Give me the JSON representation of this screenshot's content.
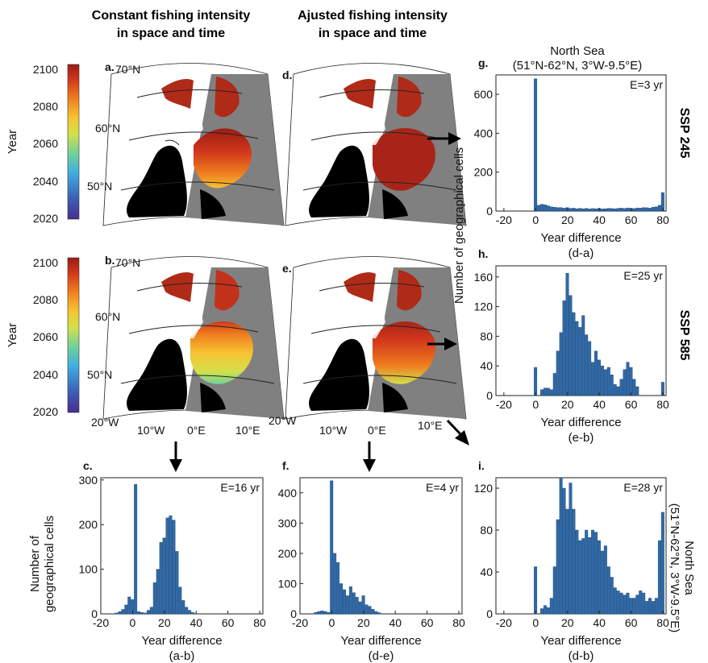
{
  "headers": {
    "col1_line1": "Constant fishing intensity",
    "col1_line2": "in space and time",
    "col2_line1": "Ajusted fishing intensity",
    "col2_line2": "in space and time"
  },
  "colors": {
    "bar": "#2f6aa8",
    "land": "#000000",
    "ocean": "#808080",
    "arctic_ocean": "#ffffff",
    "colormap": [
      "#4b2c8f",
      "#3c62b8",
      "#3faee0",
      "#6fd19a",
      "#d3e04a",
      "#f7c231",
      "#ef7d1f",
      "#d1381c",
      "#9b1c14"
    ]
  },
  "colorbars": [
    {
      "ylabel": "Year",
      "ticks": [
        "2100",
        "2080",
        "2060",
        "2040",
        "2020"
      ]
    },
    {
      "ylabel": "Year",
      "ticks": [
        "2100",
        "2080",
        "2060",
        "2040",
        "2020"
      ]
    }
  ],
  "maps": {
    "lat_labels": [
      "70°N",
      "60°N",
      "50°N"
    ],
    "lon_labels": [
      "20°W",
      "10°W",
      "0°E",
      "10°E"
    ],
    "panels": [
      {
        "letter": "a.",
        "fill": "dark-red-to-orange"
      },
      {
        "letter": "d.",
        "fill": "dark-red"
      },
      {
        "letter": "b.",
        "fill": "orange-yellow"
      },
      {
        "letter": "e.",
        "fill": "red-orange"
      }
    ]
  },
  "side_labels": {
    "ssp245": "SSP 245",
    "ssp585": "SSP 585",
    "g_title1": "North Sea",
    "g_title2": "(51°N-62°N, 3°W-9.5°E)",
    "i_right1": "North Sea",
    "i_right2": "(51°N-62°N, 3°W-9.5°E)",
    "shared_ylabel": "Number of geographical cells",
    "c_ylabel1": "Number of",
    "c_ylabel2": "geographical cells"
  },
  "chart_data": [
    {
      "id": "g",
      "letter": "g.",
      "type": "bar",
      "annotation": "E=3 yr",
      "xlabel": "Year difference",
      "sublabel": "(d-a)",
      "xlim": [
        -25,
        82
      ],
      "ylim": [
        0,
        700
      ],
      "xticks": [
        -20,
        0,
        20,
        40,
        60,
        80
      ],
      "yticks": [
        0,
        200,
        400,
        600
      ],
      "bins": [
        [
          0,
          680
        ],
        [
          2,
          30
        ],
        [
          4,
          35
        ],
        [
          6,
          32
        ],
        [
          8,
          27
        ],
        [
          10,
          22
        ],
        [
          12,
          20
        ],
        [
          14,
          18
        ],
        [
          16,
          18
        ],
        [
          18,
          15
        ],
        [
          20,
          18
        ],
        [
          22,
          14
        ],
        [
          24,
          15
        ],
        [
          26,
          12
        ],
        [
          28,
          14
        ],
        [
          30,
          12
        ],
        [
          32,
          14
        ],
        [
          34,
          11
        ],
        [
          36,
          13
        ],
        [
          38,
          12
        ],
        [
          40,
          14
        ],
        [
          42,
          11
        ],
        [
          44,
          12
        ],
        [
          46,
          14
        ],
        [
          48,
          13
        ],
        [
          50,
          12
        ],
        [
          52,
          14
        ],
        [
          54,
          15
        ],
        [
          56,
          13
        ],
        [
          58,
          16
        ],
        [
          60,
          14
        ],
        [
          62,
          13
        ],
        [
          64,
          16
        ],
        [
          66,
          15
        ],
        [
          68,
          18
        ],
        [
          70,
          17
        ],
        [
          72,
          15
        ],
        [
          74,
          20
        ],
        [
          76,
          22
        ],
        [
          78,
          30
        ],
        [
          80,
          95
        ]
      ]
    },
    {
      "id": "h",
      "letter": "h.",
      "type": "bar",
      "annotation": "E=25 yr",
      "xlabel": "Year difference",
      "sublabel": "(e-b)",
      "xlim": [
        -25,
        82
      ],
      "ylim": [
        0,
        175
      ],
      "xticks": [
        -20,
        0,
        20,
        40,
        60,
        80
      ],
      "yticks": [
        0,
        40,
        80,
        120,
        160
      ],
      "bins": [
        [
          0,
          38
        ],
        [
          4,
          8
        ],
        [
          6,
          10
        ],
        [
          8,
          10
        ],
        [
          10,
          8
        ],
        [
          12,
          30
        ],
        [
          14,
          60
        ],
        [
          16,
          85
        ],
        [
          18,
          128
        ],
        [
          20,
          165
        ],
        [
          22,
          135
        ],
        [
          24,
          112
        ],
        [
          26,
          100
        ],
        [
          28,
          92
        ],
        [
          30,
          108
        ],
        [
          32,
          82
        ],
        [
          34,
          73
        ],
        [
          36,
          45
        ],
        [
          38,
          60
        ],
        [
          40,
          48
        ],
        [
          42,
          40
        ],
        [
          44,
          35
        ],
        [
          46,
          38
        ],
        [
          48,
          28
        ],
        [
          50,
          15
        ],
        [
          52,
          12
        ],
        [
          54,
          22
        ],
        [
          56,
          35
        ],
        [
          58,
          45
        ],
        [
          60,
          38
        ],
        [
          62,
          22
        ],
        [
          64,
          12
        ],
        [
          80,
          18
        ]
      ]
    },
    {
      "id": "c",
      "letter": "c.",
      "type": "bar",
      "annotation": "E=16 yr",
      "xlabel": "Year difference",
      "sublabel": "(a-b)",
      "xlim": [
        -20,
        82
      ],
      "ylim": [
        0,
        305
      ],
      "xticks": [
        -20,
        0,
        20,
        40,
        60,
        80
      ],
      "yticks": [
        0,
        100,
        200,
        300
      ],
      "bins": [
        [
          -10,
          2
        ],
        [
          -8,
          5
        ],
        [
          -6,
          10
        ],
        [
          -4,
          20
        ],
        [
          -2,
          38
        ],
        [
          0,
          32
        ],
        [
          2,
          290
        ],
        [
          4,
          5
        ],
        [
          6,
          3
        ],
        [
          8,
          2
        ],
        [
          10,
          8
        ],
        [
          12,
          15
        ],
        [
          14,
          70
        ],
        [
          16,
          100
        ],
        [
          18,
          160
        ],
        [
          20,
          170
        ],
        [
          22,
          215
        ],
        [
          24,
          220
        ],
        [
          26,
          210
        ],
        [
          28,
          140
        ],
        [
          30,
          60
        ],
        [
          32,
          30
        ],
        [
          34,
          15
        ],
        [
          36,
          8
        ],
        [
          38,
          3
        ]
      ]
    },
    {
      "id": "f",
      "letter": "f.",
      "type": "bar",
      "annotation": "E=4 yr",
      "xlabel": "Year difference",
      "sublabel": "(d-e)",
      "xlim": [
        -20,
        82
      ],
      "ylim": [
        0,
        450
      ],
      "xticks": [
        -20,
        0,
        20,
        40,
        60,
        80
      ],
      "yticks": [
        0,
        100,
        200,
        300,
        400
      ],
      "bins": [
        [
          -10,
          5
        ],
        [
          -8,
          8
        ],
        [
          -6,
          10
        ],
        [
          -4,
          8
        ],
        [
          -2,
          5
        ],
        [
          0,
          440
        ],
        [
          2,
          200
        ],
        [
          4,
          170
        ],
        [
          6,
          100
        ],
        [
          8,
          80
        ],
        [
          10,
          60
        ],
        [
          12,
          90
        ],
        [
          14,
          70
        ],
        [
          16,
          55
        ],
        [
          18,
          40
        ],
        [
          20,
          60
        ],
        [
          22,
          30
        ],
        [
          24,
          25
        ],
        [
          26,
          15
        ],
        [
          28,
          8
        ],
        [
          30,
          4
        ]
      ]
    },
    {
      "id": "i",
      "letter": "i.",
      "type": "bar",
      "annotation": "E=28 yr",
      "xlabel": "Year difference",
      "sublabel": "(d-b)",
      "xlim": [
        -25,
        82
      ],
      "ylim": [
        0,
        130
      ],
      "xticks": [
        -20,
        0,
        20,
        40,
        60,
        80
      ],
      "yticks": [
        0,
        40,
        80,
        120
      ],
      "bins": [
        [
          0,
          45
        ],
        [
          4,
          5
        ],
        [
          6,
          8
        ],
        [
          8,
          6
        ],
        [
          10,
          15
        ],
        [
          12,
          45
        ],
        [
          14,
          90
        ],
        [
          16,
          130
        ],
        [
          18,
          120
        ],
        [
          20,
          100
        ],
        [
          22,
          125
        ],
        [
          24,
          100
        ],
        [
          26,
          80
        ],
        [
          28,
          70
        ],
        [
          30,
          72
        ],
        [
          32,
          80
        ],
        [
          34,
          73
        ],
        [
          36,
          80
        ],
        [
          38,
          78
        ],
        [
          40,
          70
        ],
        [
          42,
          60
        ],
        [
          44,
          65
        ],
        [
          46,
          45
        ],
        [
          48,
          35
        ],
        [
          50,
          25
        ],
        [
          52,
          22
        ],
        [
          54,
          20
        ],
        [
          56,
          18
        ],
        [
          58,
          20
        ],
        [
          60,
          15
        ],
        [
          62,
          15
        ],
        [
          64,
          18
        ],
        [
          66,
          22
        ],
        [
          68,
          20
        ],
        [
          70,
          12
        ],
        [
          72,
          15
        ],
        [
          74,
          12
        ],
        [
          76,
          15
        ],
        [
          78,
          70
        ],
        [
          80,
          97
        ]
      ]
    }
  ]
}
